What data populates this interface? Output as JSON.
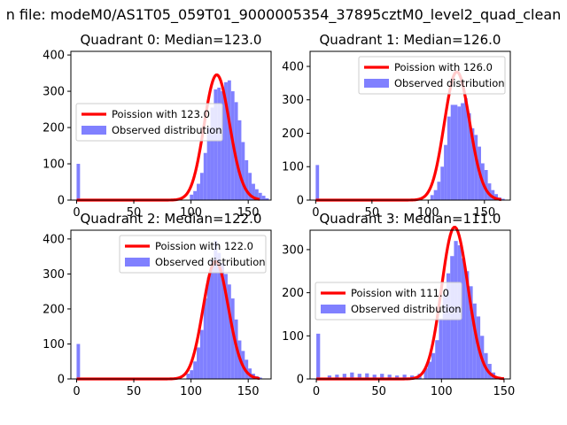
{
  "figure": {
    "suptitle": "n file: modeM0/AS1T05_059T01_9000005354_37895cztM0_level2_quad_clean"
  },
  "colors": {
    "hist_fill": "#8080ff",
    "fit_line": "#ff0000",
    "axes": "#000000",
    "legend_border": "#cccccc",
    "background": "#ffffff"
  },
  "chart_data": [
    {
      "type": "bar",
      "title": "Quadrant 0: Median=123.0",
      "xlim": [
        -5,
        170
      ],
      "ylim": [
        0,
        410
      ],
      "xticks": [
        0,
        50,
        100,
        150
      ],
      "yticks": [
        0,
        100,
        200,
        300,
        400
      ],
      "legend": {
        "placement": "center-left",
        "fit_label": "Poission with 123.0",
        "hist_label": "Observed distribution"
      },
      "hist": {
        "x": [
          0,
          99,
          102,
          105,
          108,
          111,
          114,
          117,
          120,
          123,
          126,
          129,
          132,
          135,
          138,
          141,
          144,
          147,
          150,
          153,
          156,
          159,
          162,
          165
        ],
        "width": 3,
        "values": [
          100,
          15,
          25,
          45,
          75,
          130,
          200,
          255,
          305,
          310,
          300,
          325,
          330,
          300,
          270,
          220,
          160,
          110,
          75,
          45,
          30,
          20,
          12,
          5
        ]
      },
      "fit": {
        "mean": 123,
        "scale": 9.6,
        "x_range": [
          0,
          160
        ]
      }
    },
    {
      "type": "bar",
      "title": "Quadrant 1: Median=126.0",
      "xlim": [
        -5,
        173
      ],
      "ylim": [
        0,
        445
      ],
      "xticks": [
        0,
        50,
        100,
        150
      ],
      "yticks": [
        0,
        100,
        200,
        300,
        400
      ],
      "legend": {
        "placement": "upper-right",
        "fit_label": "Poission with 126.0",
        "hist_label": "Observed distribution"
      },
      "hist": {
        "x": [
          0,
          102,
          105,
          108,
          111,
          114,
          117,
          120,
          123,
          126,
          129,
          132,
          135,
          138,
          141,
          144,
          147,
          150,
          153,
          156,
          159,
          162,
          165
        ],
        "width": 3,
        "values": [
          105,
          15,
          30,
          55,
          100,
          165,
          250,
          285,
          285,
          280,
          290,
          305,
          260,
          215,
          195,
          160,
          110,
          90,
          50,
          30,
          18,
          8,
          4
        ]
      },
      "fit": {
        "mean": 126,
        "scale": 10.8,
        "x_range": [
          0,
          165
        ]
      }
    },
    {
      "type": "bar",
      "title": "Quadrant 2: Median=122.0",
      "xlim": [
        -5,
        170
      ],
      "ylim": [
        0,
        425
      ],
      "xticks": [
        0,
        50,
        100,
        150
      ],
      "yticks": [
        0,
        100,
        200,
        300,
        400
      ],
      "legend": {
        "placement": "upper-right",
        "fit_label": "Poission with 122.0",
        "hist_label": "Observed distribution"
      },
      "hist": {
        "x": [
          0,
          96,
          99,
          102,
          105,
          108,
          111,
          114,
          117,
          120,
          123,
          126,
          129,
          132,
          135,
          138,
          141,
          144,
          147,
          150,
          153,
          156,
          159
        ],
        "width": 3,
        "values": [
          100,
          15,
          25,
          50,
          90,
          140,
          230,
          290,
          340,
          395,
          360,
          330,
          300,
          270,
          230,
          170,
          110,
          80,
          55,
          30,
          15,
          8,
          4
        ]
      },
      "fit": {
        "mean": 122,
        "scale": 9.3,
        "x_range": [
          0,
          160
        ]
      }
    },
    {
      "type": "bar",
      "title": "Quadrant 3: Median=111.0",
      "xlim": [
        -5,
        155
      ],
      "ylim": [
        0,
        345
      ],
      "xticks": [
        0,
        50,
        100,
        150
      ],
      "yticks": [
        0,
        100,
        200,
        300
      ],
      "legend": {
        "placement": "center-left",
        "fit_label": "Poission with 111.0",
        "hist_label": "Observed distribution"
      },
      "hist": {
        "x": [
          0,
          9,
          15,
          21,
          27,
          33,
          39,
          45,
          51,
          57,
          63,
          69,
          75,
          81,
          86,
          89,
          92,
          95,
          98,
          101,
          104,
          107,
          110,
          113,
          116,
          119,
          122,
          125,
          128,
          131,
          134,
          137,
          140
        ],
        "width": 3,
        "values": [
          105,
          8,
          10,
          12,
          15,
          12,
          13,
          10,
          12,
          10,
          8,
          10,
          8,
          12,
          25,
          40,
          60,
          90,
          140,
          195,
          245,
          285,
          320,
          310,
          280,
          250,
          215,
          175,
          145,
          100,
          60,
          35,
          15
        ]
      },
      "fit": {
        "mean": 111,
        "scale": 9.3,
        "x_range": [
          0,
          150
        ]
      }
    }
  ]
}
